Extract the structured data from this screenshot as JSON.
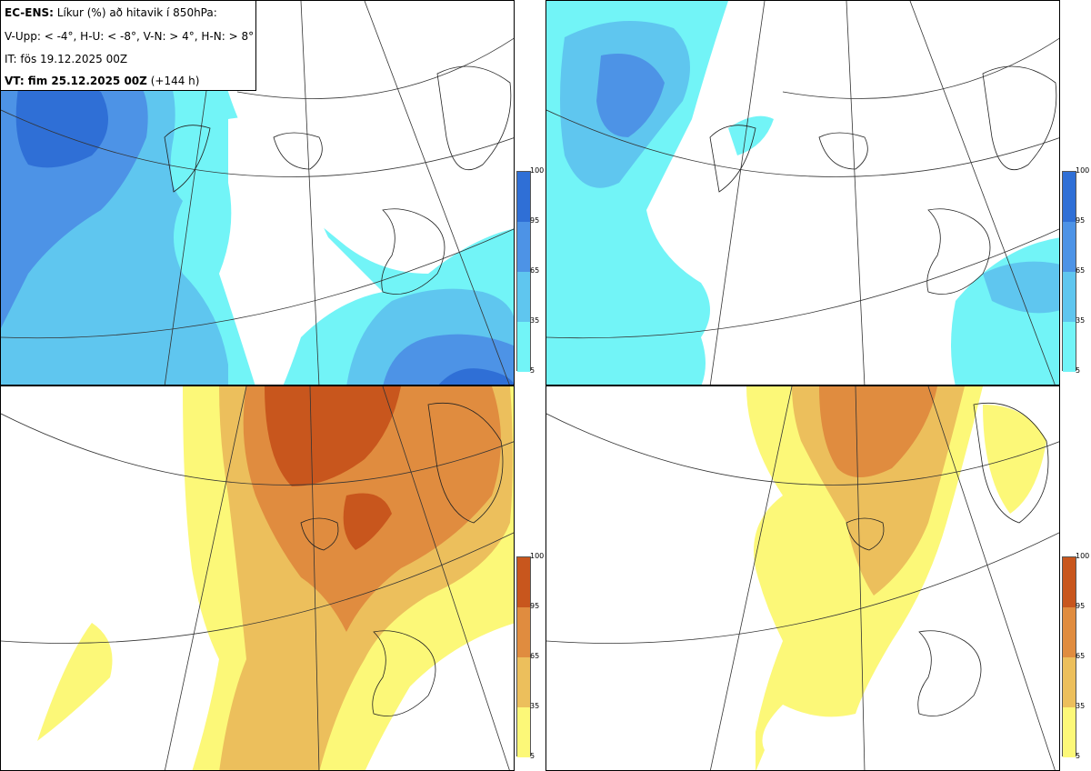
{
  "legend": {
    "model": "EC-ENS:",
    "title": "Líkur (%) að hitavik í 850hPa:",
    "categories": "V-Upp: < -4°, H-U: < -8°, V-N: > 4°, H-N: > 8°",
    "init_time": "IT: fös 19.12.2025 00Z",
    "valid_prefix": "VT: fim 25.12.2025 00Z",
    "valid_suffix": "(+144 h)"
  },
  "panels": [
    {
      "id": "cold-4",
      "scheme": "blue"
    },
    {
      "id": "cold-8",
      "scheme": "blue"
    },
    {
      "id": "warm-4",
      "scheme": "yellow"
    },
    {
      "id": "warm-8",
      "scheme": "yellow"
    }
  ],
  "colorbar_cold": {
    "ticks": [
      "100",
      "95",
      "65",
      "35",
      "5"
    ],
    "colors": [
      "#2f6fd6",
      "#4d93e6",
      "#5fc6ef",
      "#72f4f7"
    ]
  },
  "colorbar_warm": {
    "ticks": [
      "100",
      "95",
      "65",
      "35",
      "5"
    ],
    "colors": [
      "#c8561d",
      "#e08c3f",
      "#ecbf5c",
      "#fcf878"
    ]
  }
}
